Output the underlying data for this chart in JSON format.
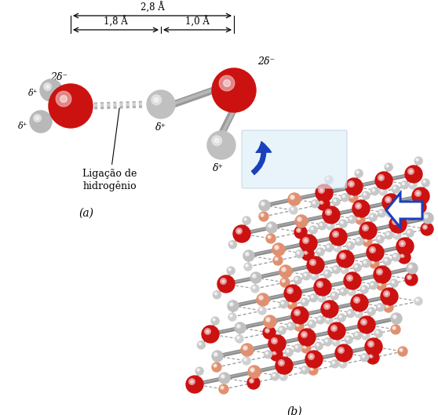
{
  "fig_width": 5.58,
  "fig_height": 5.29,
  "dpi": 100,
  "background": "#ffffff",
  "panel_a": {
    "label": "(a)",
    "annotation_text": "Ligação de\nhidrogênio",
    "dim_28_text": "2,8 Å",
    "dim_18_text": "1,8 Å",
    "dim_10_text": "1,0 Å"
  },
  "panel_b": {
    "label": "(b)"
  },
  "colors": {
    "oxygen": "#cc1111",
    "hydrogen": "#c0c0c0",
    "bond_gray": "#888888",
    "arrow_blue": "#1a40bb",
    "highlight_box": "#ddeef8",
    "salmon": "#e09070",
    "text_dark": "#111111"
  }
}
